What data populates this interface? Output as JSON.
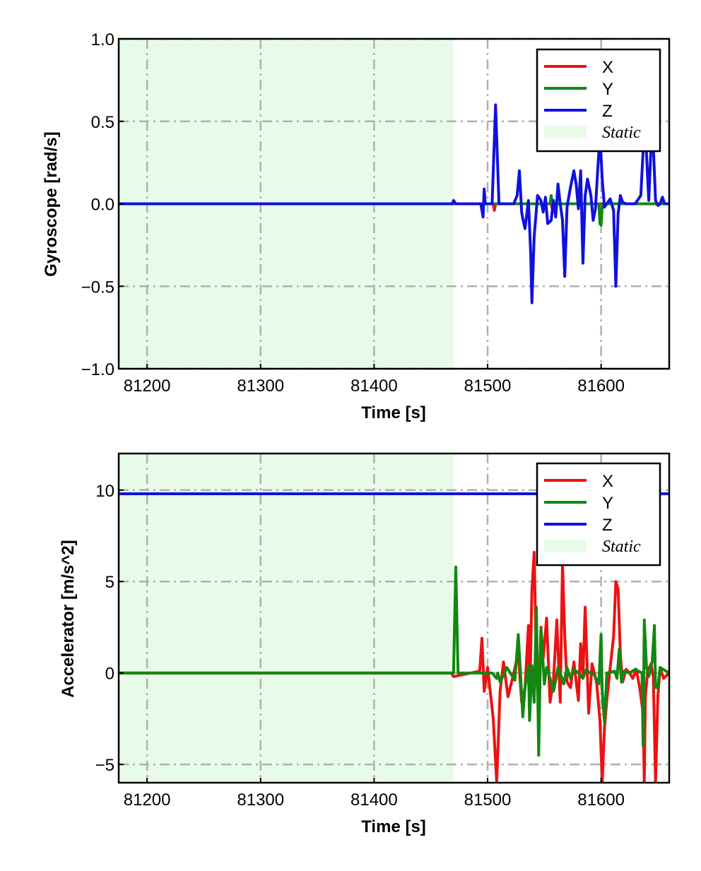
{
  "chart_data": [
    {
      "type": "line",
      "title": "",
      "xlabel": "Time [s]",
      "ylabel": "Gyroscope [rad/s]",
      "xlim": [
        81175,
        81660
      ],
      "ylim": [
        -1.0,
        1.0
      ],
      "xticks": [
        81200,
        81300,
        81400,
        81500,
        81600
      ],
      "xtick_labels": [
        "81200",
        "81300",
        "81400",
        "81500",
        "81600"
      ],
      "yticks": [
        1.0,
        0.5,
        0.0,
        -0.5,
        -1.0
      ],
      "ytick_labels": [
        "1.0",
        "0.5",
        "0.0",
        "−0.5",
        "−1.0"
      ],
      "grid": true,
      "legend": "top-right",
      "static_region": {
        "label": "Static",
        "x_start": 81175,
        "x_end": 81470,
        "color": "#e8fbe8"
      },
      "series": [
        {
          "name": "X",
          "color": "#ee1111",
          "x": [
            81175,
            81470,
            81500,
            81505,
            81506,
            81507,
            81540,
            81556,
            81557,
            81558,
            81600,
            81660
          ],
          "y": [
            0,
            0,
            0,
            0,
            -0.04,
            0,
            0,
            0,
            -0.03,
            0,
            0,
            0
          ]
        },
        {
          "name": "Y",
          "color": "#118811",
          "x": [
            81175,
            81470,
            81555,
            81556,
            81557,
            81598,
            81599,
            81600,
            81601,
            81602,
            81660
          ],
          "y": [
            0,
            0,
            0,
            0.05,
            0,
            0,
            -0.12,
            -0.13,
            -0.02,
            0,
            0
          ]
        },
        {
          "name": "Z",
          "color": "#1111dd",
          "x": [
            81175,
            81469,
            81470,
            81472,
            81494,
            81496,
            81497,
            81498,
            81504,
            81507,
            81510,
            81514,
            81518,
            81523,
            81526,
            81528,
            81530,
            81531,
            81533,
            81536,
            81538,
            81539,
            81541,
            81544,
            81547,
            81549,
            81551,
            81553,
            81556,
            81558,
            81560,
            81562,
            81564,
            81566,
            81568,
            81570,
            81573,
            81576,
            81578,
            81580,
            81582,
            81584,
            81586,
            81588,
            81591,
            81593,
            81595,
            81597,
            81599,
            81601,
            81603,
            81605,
            81608,
            81611,
            81613,
            81615,
            81617,
            81619,
            81622,
            81625,
            81630,
            81635,
            81637,
            81638,
            81640,
            81642,
            81644,
            81645,
            81646,
            81648,
            81650,
            81652,
            81654,
            81656,
            81660
          ],
          "y": [
            0,
            0,
            0.02,
            0,
            0,
            -0.08,
            0.09,
            0,
            0,
            0.6,
            0,
            0,
            0,
            0,
            0.05,
            0.2,
            -0.05,
            -0.09,
            -0.15,
            0.02,
            -0.3,
            -0.6,
            -0.2,
            0.05,
            0.02,
            -0.05,
            0.04,
            -0.12,
            -0.1,
            0.02,
            -0.08,
            0.12,
            0.0,
            -0.1,
            -0.44,
            -0.02,
            0.1,
            0.2,
            0.12,
            -0.03,
            0.2,
            -0.36,
            0.05,
            0.15,
            0.05,
            -0.1,
            -0.03,
            0.2,
            0.42,
            0.15,
            -0.02,
            0.0,
            0.03,
            -0.04,
            -0.5,
            -0.06,
            0.05,
            0.01,
            0.0,
            0.0,
            0.0,
            0.05,
            0.32,
            0.62,
            0.3,
            0.02,
            0.35,
            0.62,
            0.35,
            0.02,
            -0.01,
            0.0,
            0.04,
            0.0,
            0.0
          ]
        }
      ]
    },
    {
      "type": "line",
      "title": "",
      "xlabel": "Time [s]",
      "ylabel": "Accelerator [m/s^2]",
      "xlim": [
        81175,
        81660
      ],
      "ylim": [
        -6,
        12
      ],
      "xticks": [
        81200,
        81300,
        81400,
        81500,
        81600
      ],
      "xtick_labels": [
        "81200",
        "81300",
        "81400",
        "81500",
        "81600"
      ],
      "yticks": [
        10,
        5,
        0,
        -5
      ],
      "ytick_labels": [
        "10",
        "5",
        "0",
        "−5"
      ],
      "grid": true,
      "legend": "top-right",
      "static_region": {
        "label": "Static",
        "x_start": 81175,
        "x_end": 81470,
        "color": "#e8fbe8"
      },
      "series": [
        {
          "name": "X",
          "color": "#ee1111",
          "x": [
            81175,
            81468,
            81470,
            81493,
            81495,
            81497,
            81500,
            81505,
            81508,
            81511,
            81514,
            81518,
            81523,
            81527,
            81530,
            81533,
            81536,
            81537,
            81539,
            81541,
            81543,
            81545,
            81547,
            81549,
            81552,
            81555,
            81558,
            81561,
            81564,
            81566,
            81568,
            81570,
            81573,
            81576,
            81580,
            81582,
            81584,
            81586,
            81589,
            81592,
            81596,
            81599,
            81601,
            81603,
            81605,
            81608,
            81611,
            81613,
            81615,
            81617,
            81619,
            81622,
            81625,
            81628,
            81631,
            81634,
            81637,
            81638,
            81639,
            81641,
            81644,
            81646,
            81648,
            81650,
            81652,
            81655,
            81660
          ],
          "y": [
            0,
            0,
            -0.2,
            0.1,
            1.9,
            -1.0,
            0.3,
            -2.5,
            -6.0,
            -1.0,
            0.6,
            -1.3,
            0.0,
            1.1,
            -1.6,
            -0.8,
            2.6,
            -2.0,
            4.5,
            6.6,
            0.5,
            -2.0,
            2.5,
            0.8,
            3.0,
            -1.6,
            -0.4,
            2.9,
            -1.6,
            6.0,
            2.0,
            -0.5,
            -0.8,
            0.6,
            -1.5,
            1.6,
            -0.2,
            3.6,
            -2.2,
            0.5,
            -0.5,
            -2.6,
            -6.0,
            -3.0,
            -1.5,
            0.3,
            2.0,
            5.0,
            4.6,
            1.0,
            -0.5,
            0.2,
            0.0,
            -0.3,
            0.2,
            -0.8,
            -2.2,
            -6.0,
            -1.3,
            0.1,
            0.5,
            -0.2,
            -6.0,
            -1.3,
            0.3,
            -0.3,
            0.0
          ]
        },
        {
          "name": "Y",
          "color": "#118811",
          "x": [
            81175,
            81468,
            81470,
            81472,
            81474,
            81500,
            81504,
            81508,
            81509,
            81511,
            81517,
            81524,
            81527,
            81529,
            81531,
            81533,
            81536,
            81537,
            81539,
            81541,
            81543,
            81545,
            81547,
            81550,
            81552,
            81555,
            81558,
            81560,
            81562,
            81564,
            81567,
            81570,
            81573,
            81576,
            81580,
            81584,
            81587,
            81590,
            81594,
            81598,
            81600,
            81601,
            81603,
            81605,
            81612,
            81614,
            81616,
            81618,
            81620,
            81625,
            81630,
            81636,
            81637,
            81638,
            81640,
            81642,
            81645,
            81647,
            81648,
            81650,
            81652,
            81660
          ],
          "y": [
            0,
            0,
            0,
            5.8,
            0,
            0,
            0,
            -0.3,
            0,
            -0.5,
            0.3,
            -0.4,
            2.1,
            0.0,
            -2.4,
            -0.8,
            0.4,
            -2.6,
            0.4,
            -1.6,
            3.6,
            -4.5,
            2.4,
            -0.6,
            0.3,
            -0.3,
            -1.0,
            -0.4,
            0.3,
            0.0,
            -0.6,
            0.3,
            -0.3,
            0.2,
            0.0,
            -0.3,
            0.2,
            0.0,
            -0.1,
            -0.6,
            2.1,
            -1.0,
            -2.7,
            0.0,
            0.1,
            -0.3,
            1.3,
            -0.5,
            0.1,
            0.0,
            0.2,
            0.0,
            -4.0,
            2.9,
            0.3,
            -0.2,
            0.6,
            2.6,
            -0.8,
            -0.8,
            0.3,
            0.0
          ]
        },
        {
          "name": "Z",
          "color": "#1111dd",
          "x": [
            81175,
            81660
          ],
          "y": [
            9.8,
            9.8
          ]
        }
      ]
    }
  ]
}
